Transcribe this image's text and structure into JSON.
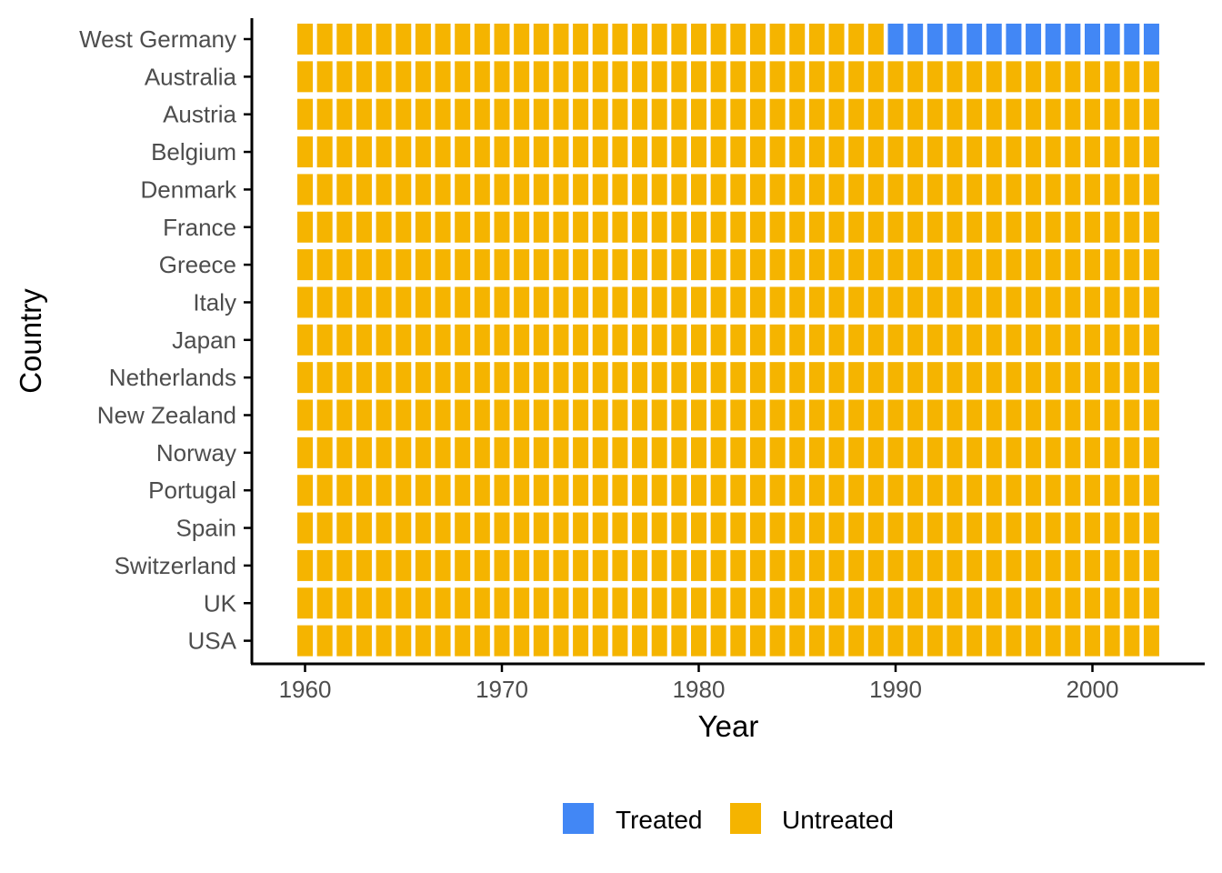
{
  "chart_data": {
    "type": "heatmap",
    "title": "",
    "xlabel": "Year",
    "ylabel": "Country",
    "x_ticks": [
      1960,
      1970,
      1980,
      1990,
      2000
    ],
    "x_start": 1960,
    "x_end": 2003,
    "countries": [
      "West Germany",
      "Australia",
      "Austria",
      "Belgium",
      "Denmark",
      "France",
      "Greece",
      "Italy",
      "Japan",
      "Netherlands",
      "New Zealand",
      "Norway",
      "Portugal",
      "Spain",
      "Switzerland",
      "UK",
      "USA"
    ],
    "treated_country": "West Germany",
    "treatment_start_year": 1990,
    "legend": {
      "position": "bottom",
      "entries": [
        {
          "label": "Treated",
          "color": "#4287f5"
        },
        {
          "label": "Untreated",
          "color": "#f5b400"
        }
      ]
    },
    "grid": false
  }
}
